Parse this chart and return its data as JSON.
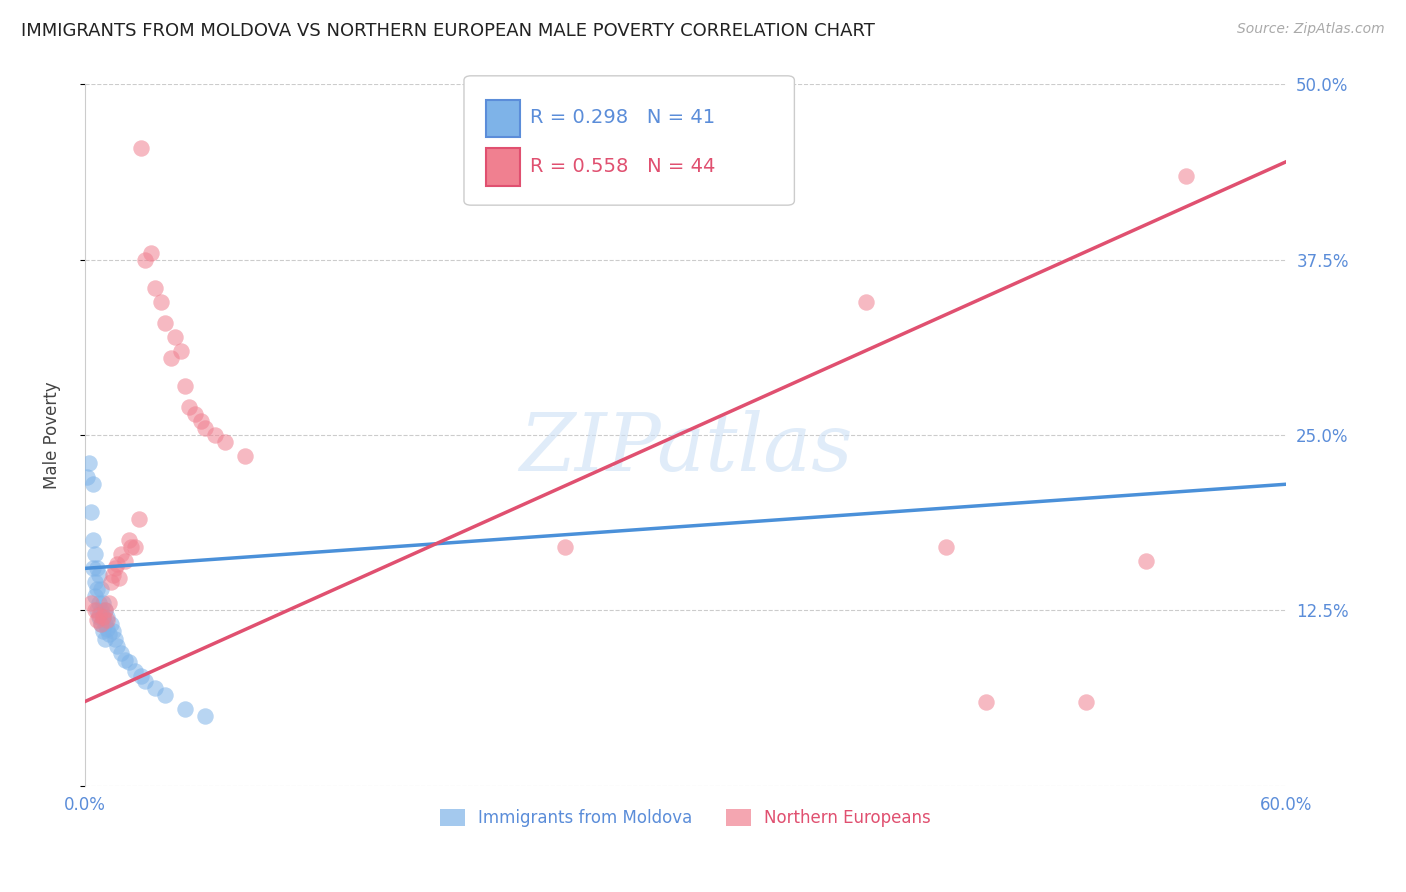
{
  "title": "IMMIGRANTS FROM MOLDOVA VS NORTHERN EUROPEAN MALE POVERTY CORRELATION CHART",
  "source": "Source: ZipAtlas.com",
  "ylabel_label": "Male Poverty",
  "x_min": 0.0,
  "x_max": 0.6,
  "y_min": 0.0,
  "y_max": 0.5,
  "x_ticks": [
    0.0,
    0.1,
    0.2,
    0.3,
    0.4,
    0.5,
    0.6
  ],
  "x_tick_labels": [
    "0.0%",
    "",
    "",
    "",
    "",
    "",
    "60.0%"
  ],
  "y_ticks": [
    0.0,
    0.125,
    0.25,
    0.375,
    0.5
  ],
  "y_tick_labels_right": [
    "",
    "12.5%",
    "25.0%",
    "37.5%",
    "50.0%"
  ],
  "grid_color": "#cccccc",
  "background_color": "#ffffff",
  "moldova_color": "#7eb3e8",
  "northern_color": "#f08090",
  "moldova_R": 0.298,
  "moldova_N": 41,
  "northern_R": 0.558,
  "northern_N": 44,
  "legend_label_moldova": "Immigrants from Moldova",
  "legend_label_northern": "Northern Europeans",
  "watermark": "ZIPatlas",
  "moldova_scatter": [
    [
      0.001,
      0.22
    ],
    [
      0.002,
      0.23
    ],
    [
      0.003,
      0.195
    ],
    [
      0.004,
      0.215
    ],
    [
      0.004,
      0.175
    ],
    [
      0.004,
      0.155
    ],
    [
      0.005,
      0.165
    ],
    [
      0.005,
      0.145
    ],
    [
      0.005,
      0.135
    ],
    [
      0.006,
      0.155
    ],
    [
      0.006,
      0.14
    ],
    [
      0.006,
      0.125
    ],
    [
      0.007,
      0.15
    ],
    [
      0.007,
      0.13
    ],
    [
      0.007,
      0.12
    ],
    [
      0.008,
      0.14
    ],
    [
      0.008,
      0.125
    ],
    [
      0.008,
      0.115
    ],
    [
      0.009,
      0.13
    ],
    [
      0.009,
      0.12
    ],
    [
      0.009,
      0.11
    ],
    [
      0.01,
      0.125
    ],
    [
      0.01,
      0.115
    ],
    [
      0.01,
      0.105
    ],
    [
      0.011,
      0.12
    ],
    [
      0.011,
      0.112
    ],
    [
      0.012,
      0.108
    ],
    [
      0.013,
      0.115
    ],
    [
      0.014,
      0.11
    ],
    [
      0.015,
      0.105
    ],
    [
      0.016,
      0.1
    ],
    [
      0.018,
      0.095
    ],
    [
      0.02,
      0.09
    ],
    [
      0.022,
      0.088
    ],
    [
      0.025,
      0.082
    ],
    [
      0.028,
      0.078
    ],
    [
      0.03,
      0.075
    ],
    [
      0.035,
      0.07
    ],
    [
      0.04,
      0.065
    ],
    [
      0.05,
      0.055
    ],
    [
      0.06,
      0.05
    ]
  ],
  "northern_scatter": [
    [
      0.003,
      0.13
    ],
    [
      0.005,
      0.125
    ],
    [
      0.006,
      0.118
    ],
    [
      0.007,
      0.122
    ],
    [
      0.008,
      0.115
    ],
    [
      0.009,
      0.12
    ],
    [
      0.01,
      0.125
    ],
    [
      0.011,
      0.118
    ],
    [
      0.012,
      0.13
    ],
    [
      0.013,
      0.145
    ],
    [
      0.014,
      0.15
    ],
    [
      0.015,
      0.155
    ],
    [
      0.016,
      0.158
    ],
    [
      0.017,
      0.148
    ],
    [
      0.018,
      0.165
    ],
    [
      0.02,
      0.16
    ],
    [
      0.022,
      0.175
    ],
    [
      0.023,
      0.17
    ],
    [
      0.025,
      0.17
    ],
    [
      0.027,
      0.19
    ],
    [
      0.028,
      0.455
    ],
    [
      0.03,
      0.375
    ],
    [
      0.033,
      0.38
    ],
    [
      0.035,
      0.355
    ],
    [
      0.038,
      0.345
    ],
    [
      0.04,
      0.33
    ],
    [
      0.043,
      0.305
    ],
    [
      0.045,
      0.32
    ],
    [
      0.048,
      0.31
    ],
    [
      0.05,
      0.285
    ],
    [
      0.052,
      0.27
    ],
    [
      0.055,
      0.265
    ],
    [
      0.058,
      0.26
    ],
    [
      0.06,
      0.255
    ],
    [
      0.065,
      0.25
    ],
    [
      0.07,
      0.245
    ],
    [
      0.08,
      0.235
    ],
    [
      0.24,
      0.17
    ],
    [
      0.39,
      0.345
    ],
    [
      0.43,
      0.17
    ],
    [
      0.45,
      0.06
    ],
    [
      0.5,
      0.06
    ],
    [
      0.53,
      0.16
    ],
    [
      0.55,
      0.435
    ]
  ],
  "moldova_line": [
    [
      0.0,
      0.155
    ],
    [
      0.6,
      0.215
    ]
  ],
  "northern_line": [
    [
      0.0,
      0.06
    ],
    [
      0.6,
      0.445
    ]
  ]
}
